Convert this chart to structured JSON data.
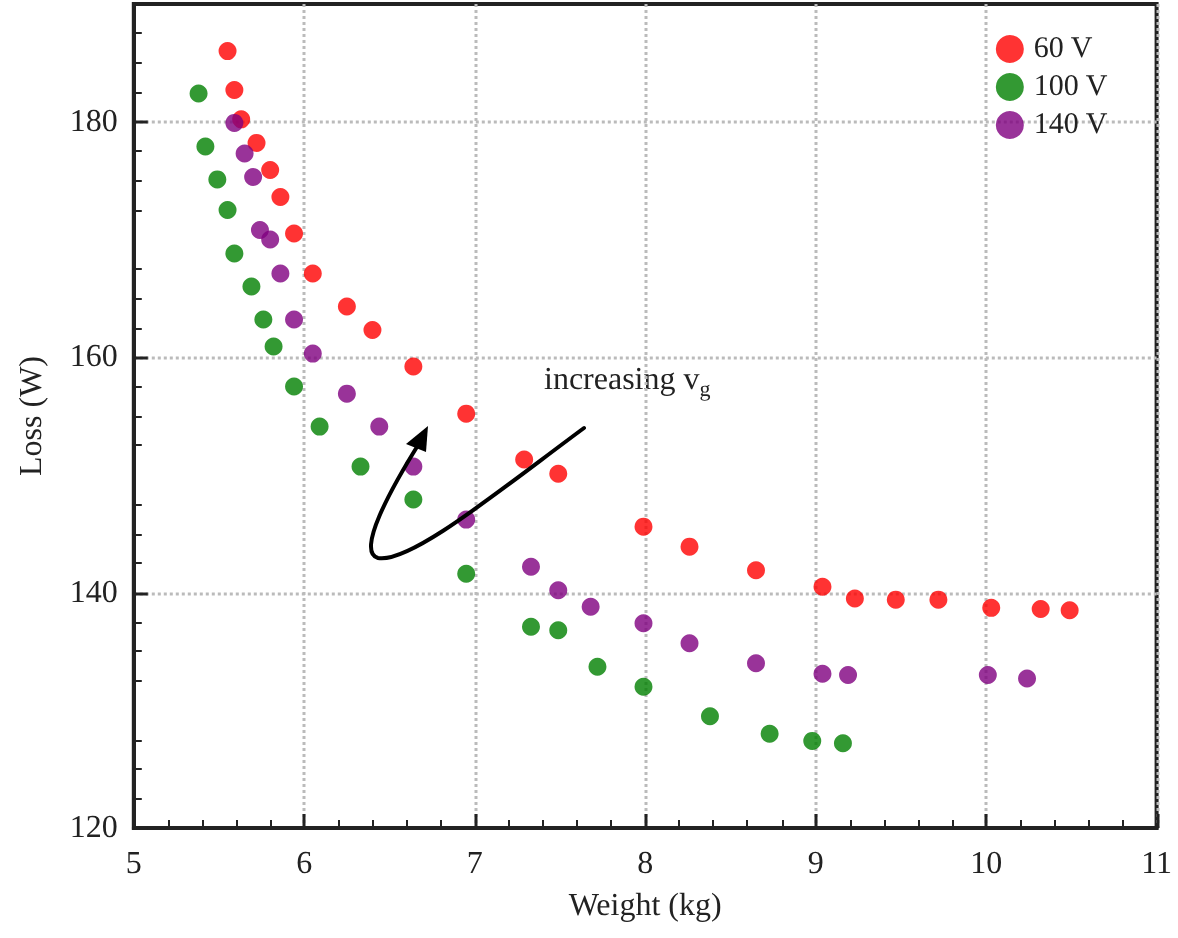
{
  "chart_data": {
    "type": "scatter",
    "xlabel": "Weight (kg)",
    "ylabel": "Loss (W)",
    "xlim": [
      5,
      11
    ],
    "xticks": [
      5,
      6,
      7,
      8,
      9,
      10,
      11
    ],
    "ylim": [
      120,
      190
    ],
    "yticks": [
      120,
      140,
      160,
      180
    ],
    "grid": true,
    "legend": "top right",
    "marker": "circle",
    "annotations": [
      "increasing v$_{g}$"
    ],
    "series": [
      {
        "name": "60 V",
        "color": "#ff0000",
        "x": [
          5.55,
          5.59,
          5.63,
          5.72,
          5.8,
          5.86,
          5.94,
          6.05,
          6.25,
          6.4,
          6.64,
          6.95,
          7.29,
          7.49,
          7.99,
          8.26,
          8.65,
          9.04,
          9.23,
          9.47,
          9.72,
          10.03,
          10.32,
          10.49
        ],
        "values": [
          186.0,
          182.7,
          180.2,
          178.2,
          175.9,
          173.6,
          170.5,
          167.1,
          164.3,
          162.3,
          159.2,
          155.2,
          151.3,
          150.1,
          145.6,
          143.9,
          141.9,
          140.5,
          139.5,
          139.4,
          139.4,
          138.7,
          138.6,
          138.5
        ]
      },
      {
        "name": "100 V",
        "color": "#008000",
        "x": [
          5.38,
          5.42,
          5.49,
          5.55,
          5.59,
          5.69,
          5.76,
          5.82,
          5.94,
          6.09,
          6.33,
          6.64,
          6.95,
          7.33,
          7.49,
          7.72,
          7.99,
          8.38,
          8.73,
          8.98,
          9.16
        ],
        "values": [
          182.4,
          177.9,
          175.1,
          172.5,
          168.8,
          166.0,
          163.2,
          160.9,
          157.5,
          154.1,
          150.7,
          147.9,
          141.6,
          137.1,
          136.8,
          133.7,
          132.0,
          129.5,
          128.0,
          127.4,
          127.2
        ]
      },
      {
        "name": "140 V",
        "color": "#800080",
        "x": [
          5.59,
          5.65,
          5.7,
          5.74,
          5.8,
          5.86,
          5.94,
          6.05,
          6.25,
          6.44,
          6.64,
          6.95,
          7.33,
          7.49,
          7.68,
          7.99,
          8.26,
          8.65,
          9.04,
          9.19,
          10.01,
          10.24
        ],
        "values": [
          179.9,
          177.3,
          175.3,
          170.8,
          170.0,
          167.1,
          163.2,
          160.3,
          156.9,
          154.1,
          150.7,
          146.2,
          142.2,
          140.2,
          138.8,
          137.4,
          135.7,
          134.0,
          133.1,
          133.0,
          133.0,
          132.7
        ]
      }
    ]
  }
}
